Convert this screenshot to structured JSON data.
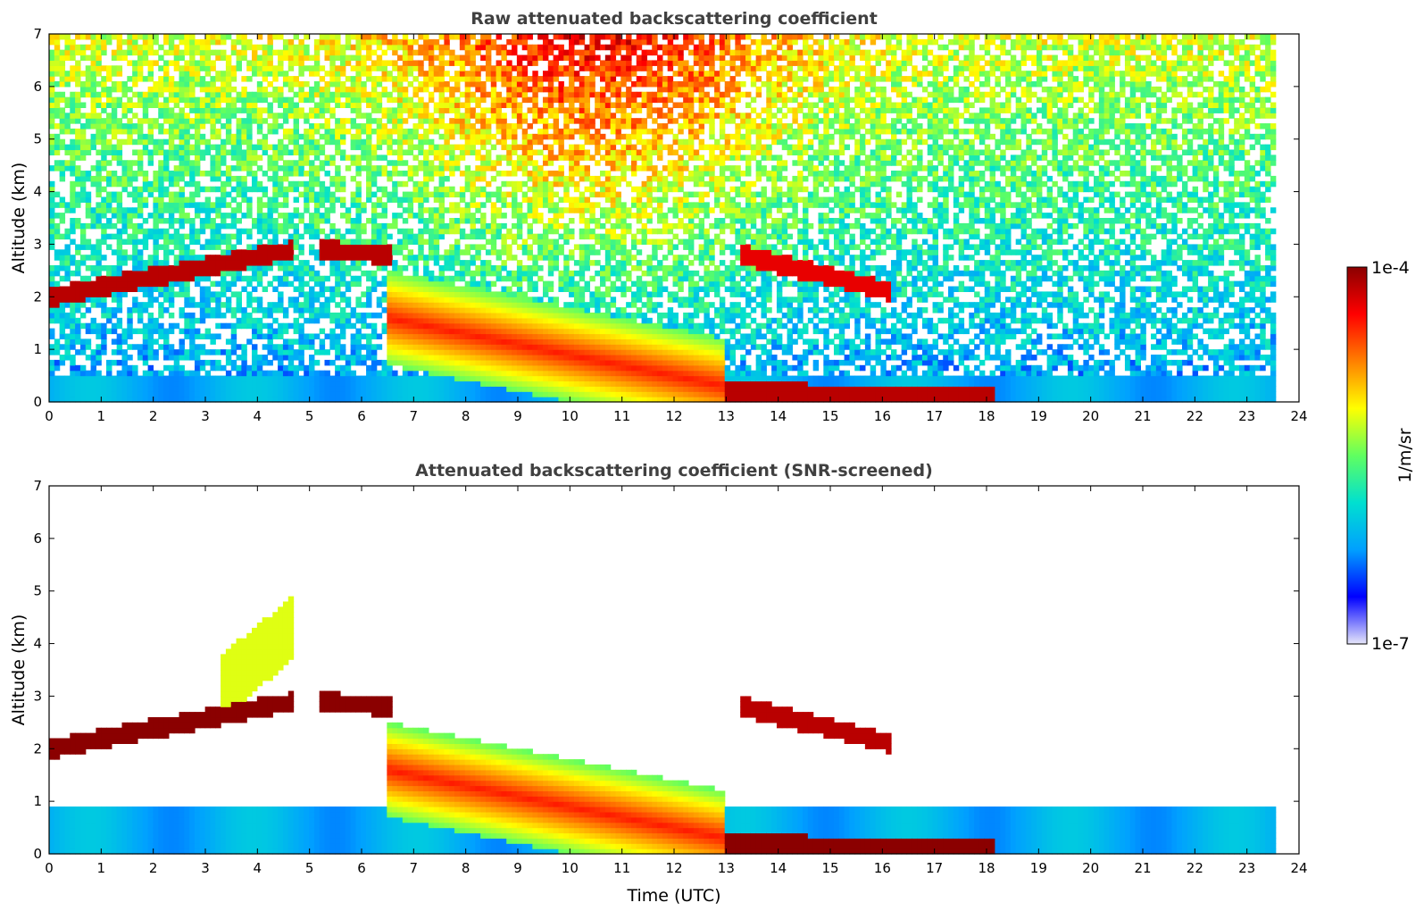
{
  "chart_data": [
    {
      "type": "heatmap",
      "title": "Raw attenuated backscattering coefficient",
      "xlabel": "",
      "ylabel": "Altitude (km)",
      "xlim": [
        0,
        24
      ],
      "ylim": [
        0,
        7
      ],
      "xticks": [
        "0",
        "1",
        "2",
        "3",
        "4",
        "5",
        "6",
        "7",
        "8",
        "9",
        "10",
        "11",
        "12",
        "13",
        "14",
        "15",
        "16",
        "17",
        "18",
        "19",
        "20",
        "21",
        "22",
        "23",
        "24"
      ],
      "yticks": [
        "0",
        "1",
        "2",
        "3",
        "4",
        "5",
        "6",
        "7"
      ],
      "data_end_time": 23.55,
      "noise_background": "high noise increasing with altitude, strongest from about 8 to 13 UTC",
      "features": [
        {
          "name": "boundary-layer aerosol",
          "x": [
            0,
            23.55
          ],
          "top_km": 0.5,
          "level": 0.3
        },
        {
          "name": "cloud layer",
          "x": [
            0,
            4.7
          ],
          "alt_km": [
            2.0,
            2.9
          ],
          "level": 0.95
        },
        {
          "name": "cloud layer",
          "x": [
            5.2,
            6.6
          ],
          "alt_km": [
            2.9,
            2.8
          ],
          "level": 0.95
        },
        {
          "name": "cloud layer",
          "x": [
            13.3,
            16.2
          ],
          "alt_km": [
            2.8,
            2.1
          ],
          "level": 0.9
        },
        {
          "name": "cloud / aerosol",
          "x": [
            6.5,
            13.0
          ],
          "alt_km": [
            1.6,
            0.3
          ],
          "level": 0.8
        },
        {
          "name": "low cloud",
          "x": [
            13.0,
            18.2
          ],
          "alt_km": [
            0.2,
            0.1
          ],
          "level": 0.95
        }
      ]
    },
    {
      "type": "heatmap",
      "title": "Attenuated backscattering coefficient (SNR-screened)",
      "xlabel": "Time (UTC)",
      "ylabel": "Altitude (km)",
      "xlim": [
        0,
        24
      ],
      "ylim": [
        0,
        7
      ],
      "xticks": [
        "0",
        "1",
        "2",
        "3",
        "4",
        "5",
        "6",
        "7",
        "8",
        "9",
        "10",
        "11",
        "12",
        "13",
        "14",
        "15",
        "16",
        "17",
        "18",
        "19",
        "20",
        "21",
        "22",
        "23",
        "24"
      ],
      "yticks": [
        "0",
        "1",
        "2",
        "3",
        "4",
        "5",
        "6",
        "7"
      ],
      "data_end_time": 23.55,
      "screening": "pixels below SNR threshold are blank (white)",
      "features": [
        {
          "name": "boundary-layer aerosol",
          "x": [
            0,
            23.55
          ],
          "top_km": 0.9,
          "level": 0.3
        },
        {
          "name": "cloud layer",
          "x": [
            0,
            4.7
          ],
          "alt_km": [
            2.0,
            2.9
          ],
          "level": 1.0
        },
        {
          "name": "cloud layer",
          "x": [
            5.2,
            6.6
          ],
          "alt_km": [
            2.9,
            2.8
          ],
          "level": 1.0
        },
        {
          "name": "cloud layer",
          "x": [
            13.3,
            16.2
          ],
          "alt_km": [
            2.8,
            2.1
          ],
          "level": 0.95
        },
        {
          "name": "cloud / aerosol",
          "x": [
            6.5,
            13.0
          ],
          "alt_km": [
            1.6,
            0.3
          ],
          "level": 0.8
        },
        {
          "name": "low cloud",
          "x": [
            13.0,
            18.2
          ],
          "alt_km": [
            0.2,
            0.1
          ],
          "level": 1.0
        },
        {
          "name": "elevated aerosol",
          "x": [
            3.3,
            4.7
          ],
          "alt_km": [
            3.2,
            4.3
          ],
          "level": 0.6
        }
      ]
    }
  ],
  "colorbar": {
    "label": "1/m/sr",
    "max_label": "1e-4",
    "min_label": "1e-7",
    "scale": "log",
    "colormap": [
      "#e6e6fa",
      "#0000ff",
      "#00a0ff",
      "#00e0d0",
      "#60ff60",
      "#ffff00",
      "#ff8000",
      "#ff0000",
      "#8b0000"
    ]
  }
}
